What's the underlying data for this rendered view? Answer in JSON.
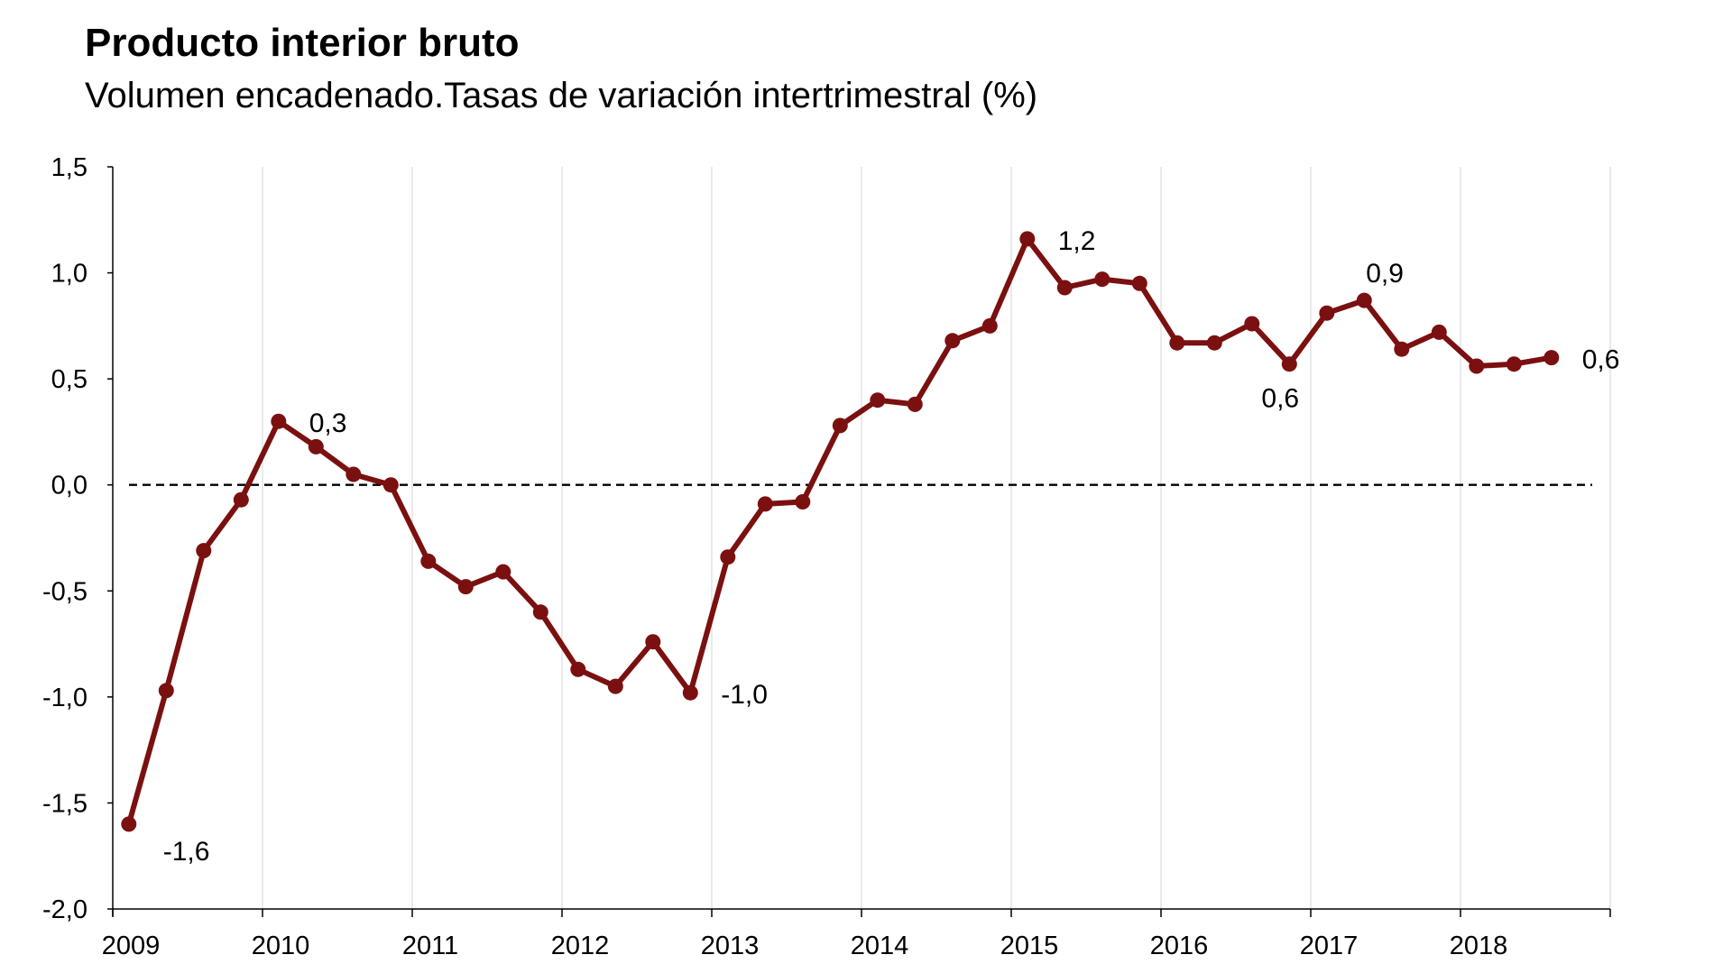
{
  "chart_data": {
    "type": "line",
    "title": "Producto interior bruto",
    "subtitle": "Volumen encadenado.Tasas de variación intertrimestral (%)",
    "xlabel": "",
    "ylabel": "",
    "ylim": [
      -2.0,
      1.5
    ],
    "y_ticks": [
      {
        "value": 1.5,
        "label": "1,5"
      },
      {
        "value": 1.0,
        "label": "1,0"
      },
      {
        "value": 0.5,
        "label": "0,5"
      },
      {
        "value": 0.0,
        "label": "0,0"
      },
      {
        "value": -0.5,
        "label": "-0,5"
      },
      {
        "value": -1.0,
        "label": "-1,0"
      },
      {
        "value": -1.5,
        "label": "-1,5"
      },
      {
        "value": -2.0,
        "label": "-2,0"
      }
    ],
    "x_year_labels": [
      "2009",
      "2010",
      "2011",
      "2012",
      "2013",
      "2014",
      "2015",
      "2016",
      "2017",
      "2018"
    ],
    "x_year_start": 2009,
    "grid": "vertical",
    "zero_line": "dashed",
    "line_color": "#7b1010",
    "series": [
      {
        "values": [
          -1.6,
          -0.97,
          -0.31,
          -0.07,
          0.3,
          0.18,
          0.05,
          0.0,
          -0.36,
          -0.48,
          -0.41,
          -0.6,
          -0.87,
          -0.95,
          -0.74,
          -0.98,
          -0.34,
          -0.09,
          -0.08,
          0.28,
          0.4,
          0.38,
          0.68,
          0.75,
          1.16,
          0.93,
          0.97,
          0.95,
          0.67,
          0.67,
          0.76,
          0.57,
          0.81,
          0.87,
          0.64,
          0.72,
          0.56,
          0.57,
          0.6
        ],
        "quarters": [
          "2009 T1",
          "2009 T2",
          "2009 T3",
          "2009 T4",
          "2010 T1",
          "2010 T2",
          "2010 T3",
          "2010 T4",
          "2011 T1",
          "2011 T2",
          "2011 T3",
          "2011 T4",
          "2012 T1",
          "2012 T2",
          "2012 T3",
          "2012 T4",
          "2013 T1",
          "2013 T2",
          "2013 T3",
          "2013 T4",
          "2014 T1",
          "2014 T2",
          "2014 T3",
          "2014 T4",
          "2015 T1",
          "2015 T2",
          "2015 T3",
          "2015 T4",
          "2016 T1",
          "2016 T2",
          "2016 T3",
          "2016 T4",
          "2017 T1",
          "2017 T2",
          "2017 T3",
          "2017 T4",
          "2018 T1",
          "2018 T2",
          "2018 T3"
        ]
      }
    ],
    "annotations": [
      {
        "index": 0,
        "text": "-1,6",
        "position": "below-right"
      },
      {
        "index": 4,
        "text": "0,3",
        "position": "right"
      },
      {
        "index": 15,
        "text": "-1,0",
        "position": "right"
      },
      {
        "index": 24,
        "text": "1,2",
        "position": "right"
      },
      {
        "index": 31,
        "text": "0,6",
        "position": "below"
      },
      {
        "index": 33,
        "text": "0,9",
        "position": "above-right"
      },
      {
        "index": 38,
        "text": "0,6",
        "position": "right"
      }
    ]
  }
}
